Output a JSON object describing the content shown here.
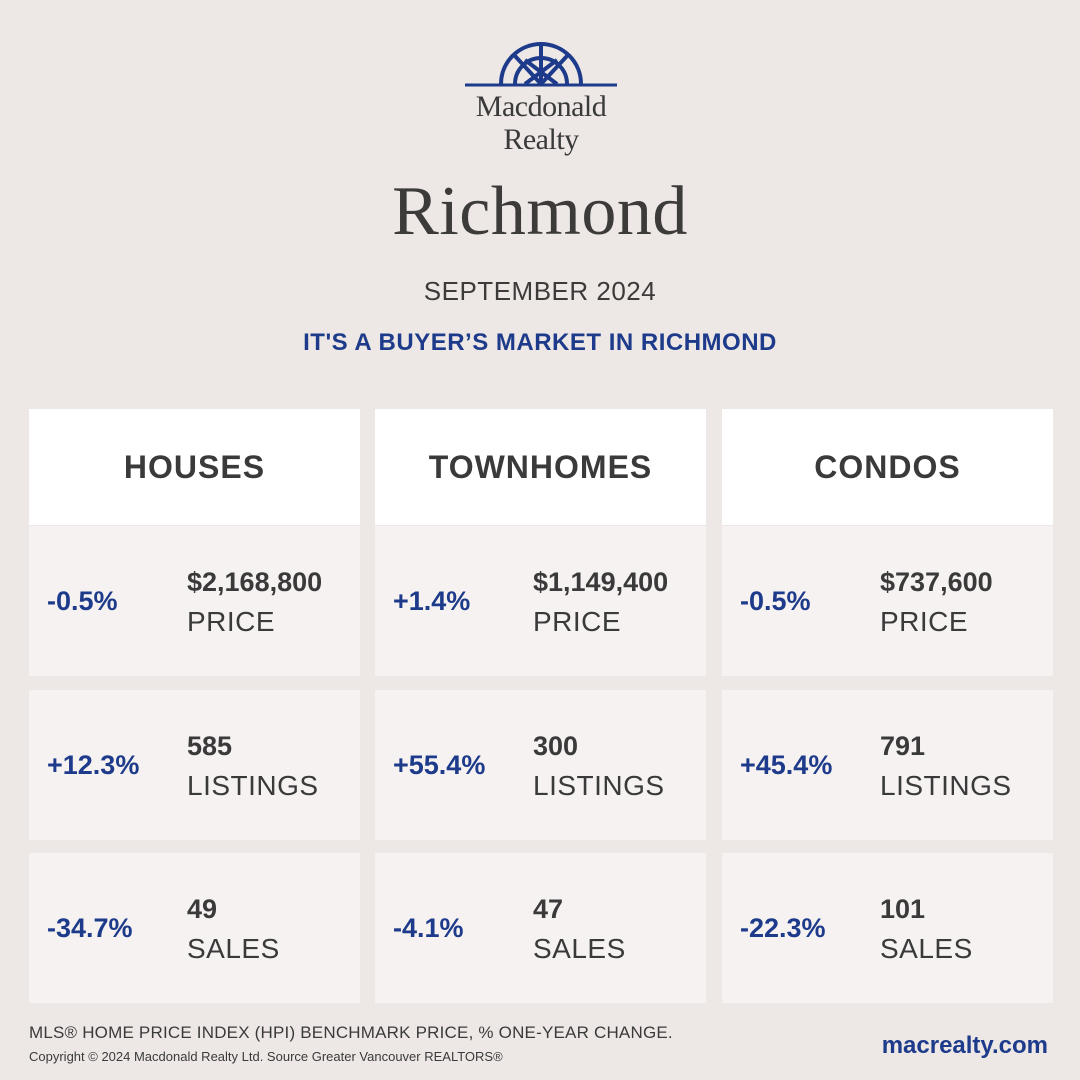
{
  "brand": {
    "line1": "Macdonald",
    "line2": "Realty",
    "logo_icon": "sunrise-arch-logo",
    "color": "#1d3b8a"
  },
  "city": "Richmond",
  "period": "SEPTEMBER 2024",
  "headline": "IT'S A BUYER’S MARKET IN RICHMOND",
  "accent_color": "#1d3b8a",
  "columns": [
    {
      "title": "HOUSES",
      "stats": [
        {
          "change": "-0.5%",
          "value": "$2,168,800",
          "label": "PRICE"
        },
        {
          "change": "+12.3%",
          "value": "585",
          "label": "LISTINGS"
        },
        {
          "change": "-34.7%",
          "value": "49",
          "label": "SALES"
        }
      ]
    },
    {
      "title": "TOWNHOMES",
      "stats": [
        {
          "change": "+1.4%",
          "value": "$1,149,400",
          "label": "PRICE"
        },
        {
          "change": "+55.4%",
          "value": "300",
          "label": "LISTINGS"
        },
        {
          "change": "-4.1%",
          "value": "47",
          "label": "SALES"
        }
      ]
    },
    {
      "title": "CONDOS",
      "stats": [
        {
          "change": "-0.5%",
          "value": "$737,600",
          "label": "PRICE"
        },
        {
          "change": "+45.4%",
          "value": "791",
          "label": "LISTINGS"
        },
        {
          "change": "-22.3%",
          "value": "101",
          "label": "SALES"
        }
      ]
    }
  ],
  "footer": {
    "note": "MLS® HOME PRICE INDEX (HPI) BENCHMARK PRICE, % ONE-YEAR CHANGE.",
    "copyright": "Copyright © 2024 Macdonald Realty Ltd. Source Greater Vancouver REALTORS®",
    "website": "macrealty.com"
  }
}
